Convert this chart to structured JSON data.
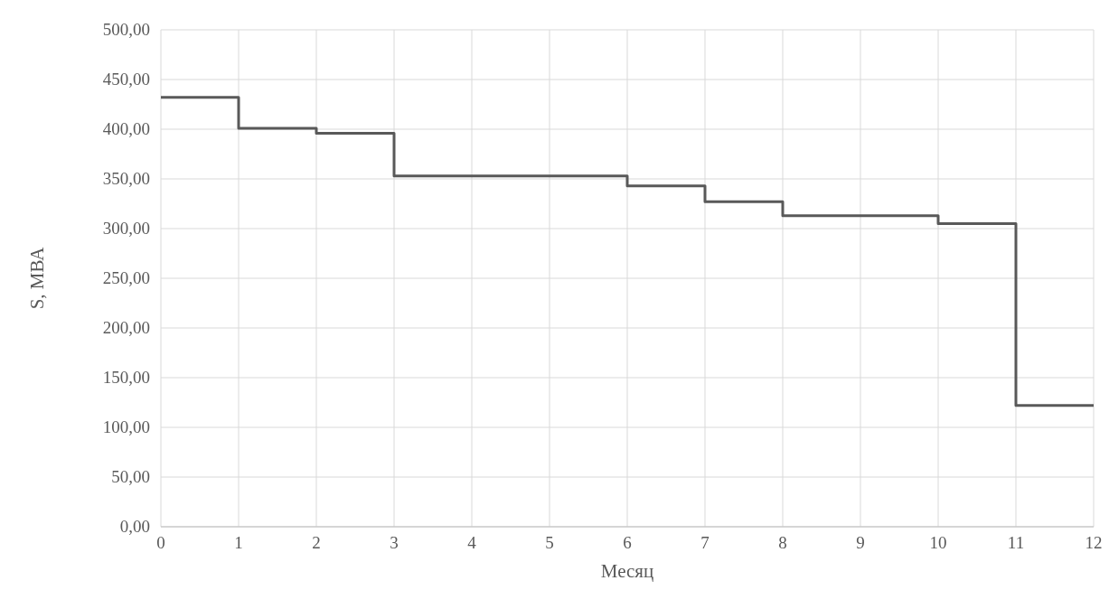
{
  "chart_data": {
    "type": "step",
    "xlabel": "Месяц",
    "ylabel": "S, МВА",
    "x": [
      0,
      1,
      2,
      3,
      6,
      7,
      8,
      10,
      11,
      12
    ],
    "series": [
      {
        "color": "#595959",
        "values": [
          432,
          401,
          396,
          353,
          343,
          327,
          313,
          305,
          122,
          122
        ]
      }
    ],
    "xlim": [
      0,
      12
    ],
    "xticks": [
      0,
      1,
      2,
      3,
      4,
      5,
      6,
      7,
      8,
      9,
      10,
      11,
      12
    ],
    "ylim": [
      0,
      500
    ],
    "yticks": [
      {
        "value": 0,
        "label": "0,00"
      },
      {
        "value": 50,
        "label": "50,00"
      },
      {
        "value": 100,
        "label": "100,00"
      },
      {
        "value": 150,
        "label": "150,00"
      },
      {
        "value": 200,
        "label": "200,00"
      },
      {
        "value": 250,
        "label": "250,00"
      },
      {
        "value": 300,
        "label": "300,00"
      },
      {
        "value": 350,
        "label": "350,00"
      },
      {
        "value": 400,
        "label": "400,00"
      },
      {
        "value": 450,
        "label": "450,00"
      },
      {
        "value": 500,
        "label": "500,00"
      }
    ],
    "grid": true,
    "line_style": "solid"
  }
}
